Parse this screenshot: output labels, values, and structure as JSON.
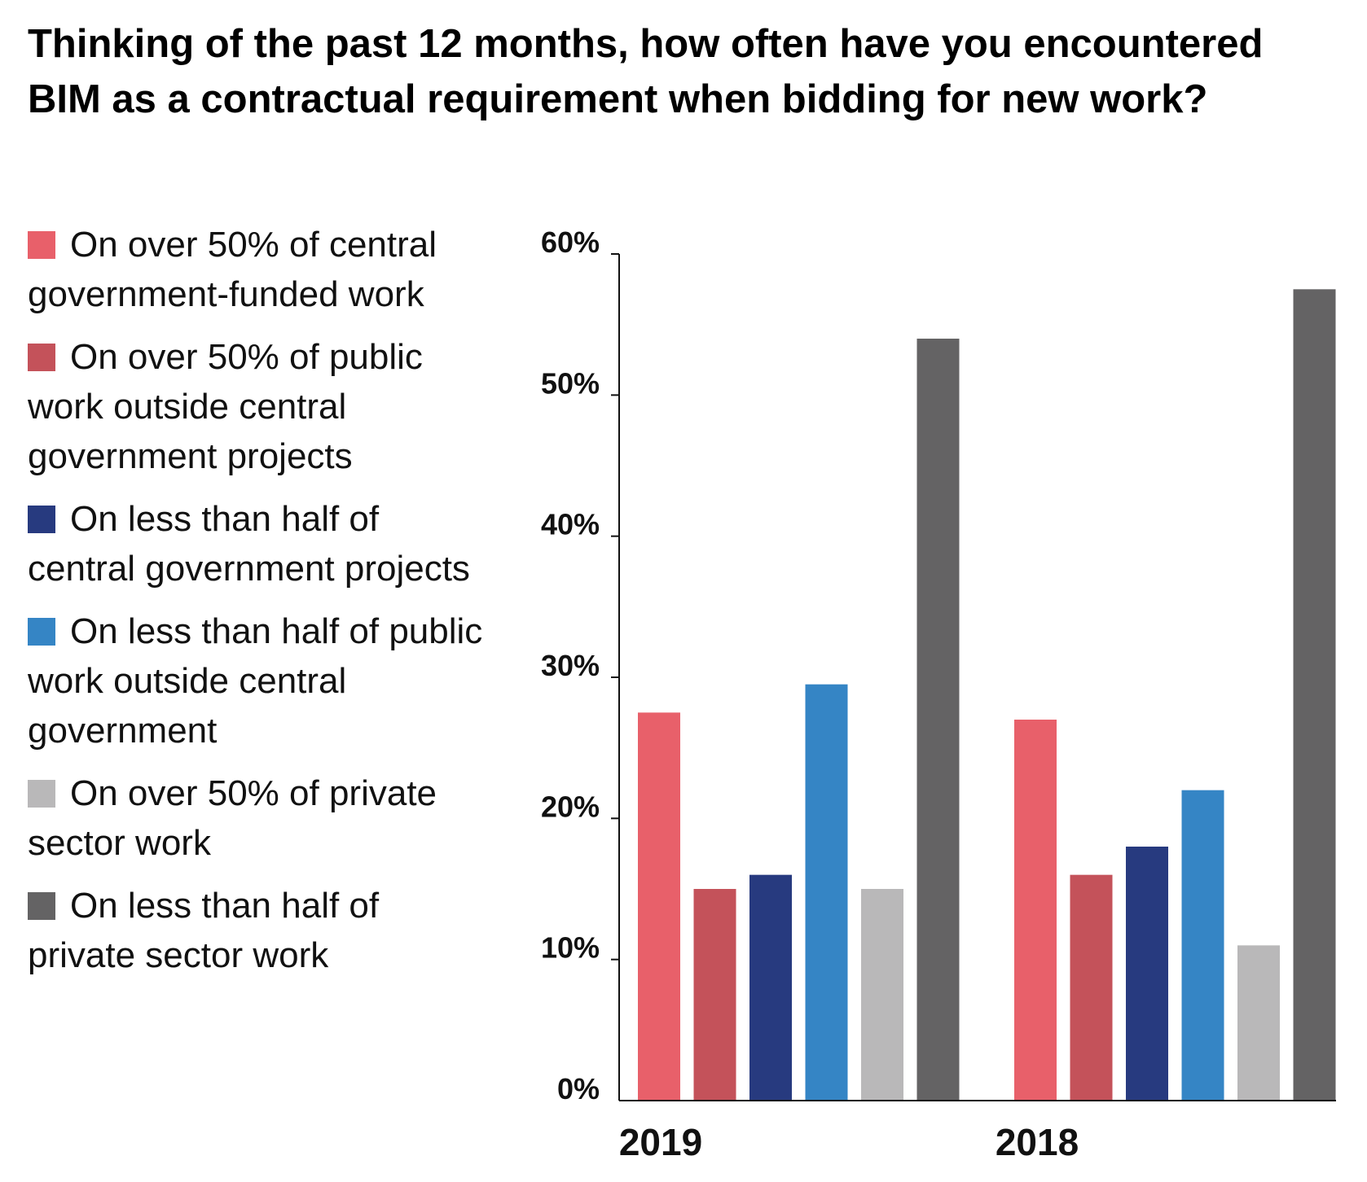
{
  "chart_data": {
    "type": "bar",
    "title": "Thinking of the past 12 months, how often have you encountered BIM as a contractual requirement when bidding for new work?",
    "categories": [
      "2019",
      "2018"
    ],
    "series": [
      {
        "name": "On over 50% of central government-funded work",
        "color": "#e8606a",
        "values": [
          27.5,
          27
        ]
      },
      {
        "name": "On over 50% of public work outside central government projects",
        "color": "#c4525a",
        "values": [
          15,
          16
        ]
      },
      {
        "name": "On less than half of central government projects",
        "color": "#273a7f",
        "values": [
          16,
          18
        ]
      },
      {
        "name": "On less than half of public work outside central government",
        "color": "#3585c5",
        "values": [
          29.5,
          22
        ]
      },
      {
        "name": "On over 50% of private sector work",
        "color": "#b9b8b9",
        "values": [
          15,
          11
        ]
      },
      {
        "name": "On less than half of private sector work",
        "color": "#646364",
        "values": [
          54,
          57.5
        ]
      }
    ],
    "ylim": [
      0,
      60
    ],
    "yticks": [
      "0%",
      "10%",
      "20%",
      "30%",
      "40%",
      "50%",
      "60%"
    ],
    "xlabel": "",
    "ylabel": "",
    "legend_position": "left"
  }
}
